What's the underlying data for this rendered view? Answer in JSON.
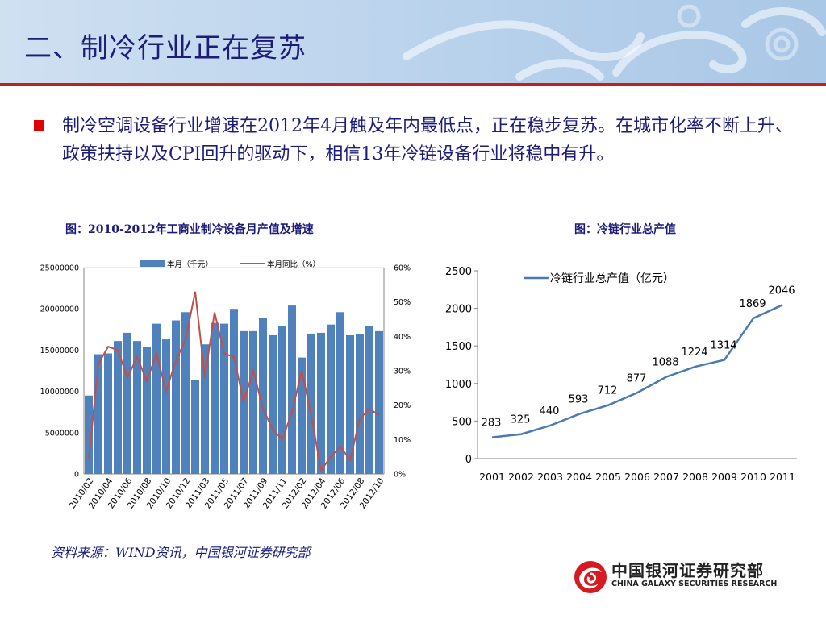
{
  "title": "二、制冷行业正在复苏",
  "body_text": "制冷空调设备行业增速在2012年4月触及年内最低点，正在稳步复苏。在城市化率不断上升、政策扶持以及CPI回升的驱动下，相信13年冷链设备行业将稳中有升。",
  "colors": {
    "title": "#1c1c7a",
    "accent_red": "#c41f1f",
    "bar": "#4f81bd",
    "growth_line": "#c0504d",
    "line": "#4a7ab0"
  },
  "chart_data": [
    {
      "type": "bar",
      "title": "图：2010-2012年工商业制冷设备月产值及增速",
      "legend": [
        "本月（千元）",
        "本月同比（%）"
      ],
      "legend_position": "top",
      "x_tick_labels": [
        "2010/02",
        "2010/04",
        "2010/06",
        "2010/08",
        "2010/10",
        "2010/12",
        "2011/03",
        "2011/05",
        "2011/07",
        "2011/09",
        "2011/11",
        "2012/02",
        "2012/04",
        "2012/06",
        "2012/08",
        "2012/10"
      ],
      "y_tick_labels": [
        "0",
        "5000000",
        "10000000",
        "15000000",
        "20000000",
        "25000000"
      ],
      "y2_tick_labels": [
        "0%",
        "10%",
        "20%",
        "30%",
        "40%",
        "50%",
        "60%"
      ],
      "ylim": [
        0,
        25000000
      ],
      "y2lim": [
        0,
        60
      ],
      "series": [
        {
          "name": "本月（千元）",
          "type": "bar",
          "values": [
            9500000,
            14500000,
            14600000,
            16100000,
            17100000,
            16100000,
            15400000,
            18200000,
            16300000,
            18600000,
            19600000,
            11400000,
            15700000,
            18300000,
            18200000,
            20000000,
            17300000,
            17300000,
            18900000,
            16800000,
            17900000,
            20400000,
            14100000,
            17000000,
            17100000,
            18100000,
            19600000,
            16800000,
            16900000,
            17900000,
            17300000
          ]
        },
        {
          "name": "本月同比（%）",
          "type": "line",
          "axis": "right",
          "values": [
            4.5,
            32,
            37,
            36,
            28,
            34,
            27,
            35,
            24,
            33,
            39,
            53,
            28,
            47,
            35,
            34,
            21,
            30,
            19,
            13,
            10,
            18,
            30,
            17,
            1,
            5,
            8,
            4,
            16,
            19,
            17
          ]
        }
      ]
    },
    {
      "type": "line",
      "title": "图：冷链行业总产值",
      "legend": [
        "冷链行业总产值（亿元）"
      ],
      "legend_position": "top",
      "categories": [
        "2001",
        "2002",
        "2003",
        "2004",
        "2005",
        "2006",
        "2007",
        "2008",
        "2009",
        "2010",
        "2011"
      ],
      "series": [
        {
          "name": "冷链行业总产值（亿元）",
          "values": [
            283,
            325,
            440,
            593,
            712,
            877,
            1088,
            1224,
            1314,
            1869,
            2046
          ]
        }
      ],
      "y_tick_labels": [
        "0",
        "500",
        "1000",
        "1500",
        "2000",
        "2500"
      ],
      "ylim": [
        0,
        2500
      ]
    }
  ],
  "source": "资料来源：WIND资讯，中国银河证券研究部",
  "logo": {
    "name": "中国银河证券研究部",
    "english": "CHINA GALAXY SECURITIES RESEARCH"
  }
}
